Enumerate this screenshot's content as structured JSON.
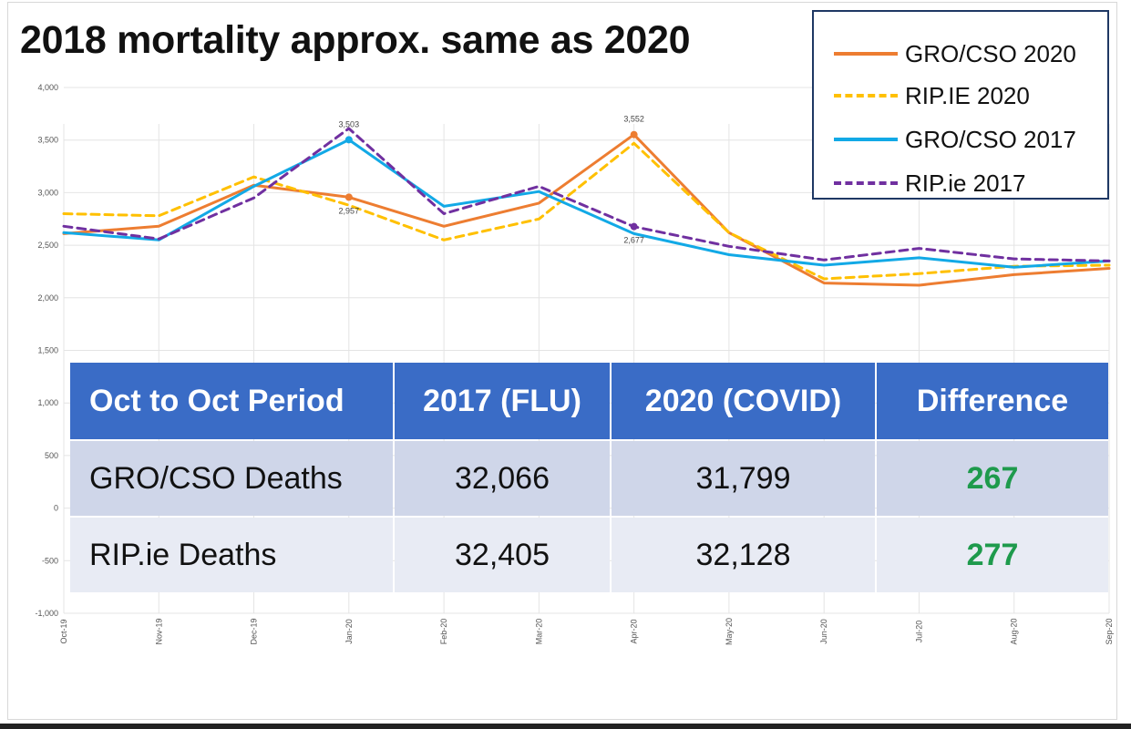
{
  "title": "2018 mortality approx. same as 2020",
  "legend": [
    {
      "label": "GRO/CSO 2020",
      "color": "#ed7d31",
      "dash": false
    },
    {
      "label": "RIP.IE 2020",
      "color": "#ffc000",
      "dash": true
    },
    {
      "label": "GRO/CSO 2017",
      "color": "#12a9e6",
      "dash": false
    },
    {
      "label": "RIP.ie 2017",
      "color": "#7030a0",
      "dash": true
    }
  ],
  "chart_data": {
    "type": "line",
    "title": "2018 mortality approx. same as 2020",
    "xlabel": "",
    "ylabel": "",
    "categories": [
      "Oct-19",
      "Nov-19",
      "Dec-19",
      "Jan-20",
      "Feb-20",
      "Mar-20",
      "Apr-20",
      "May-20",
      "Jun-20",
      "Jul-20",
      "Aug-20",
      "Sep-20"
    ],
    "ylim": [
      -1000,
      4000
    ],
    "yticks": [
      "4,000",
      "3,500",
      "3,000",
      "2,500",
      "2,000",
      "1,500",
      "1,000",
      "500",
      "0",
      "-500",
      "-1,000"
    ],
    "ytick_values": [
      4000,
      3500,
      3000,
      2500,
      2000,
      1500,
      1000,
      500,
      0,
      -500,
      -1000
    ],
    "grid": true,
    "legend_position": "top-right",
    "series": [
      {
        "name": "GRO/CSO 2020",
        "color": "#ed7d31",
        "dash": false,
        "markers": true,
        "values": [
          2610,
          2680,
          3070,
          2957,
          2680,
          2900,
          3552,
          2620,
          2140,
          2120,
          2220,
          2280
        ]
      },
      {
        "name": "RIP.IE 2020",
        "color": "#ffc000",
        "dash": true,
        "markers": false,
        "values": [
          2800,
          2780,
          3150,
          2880,
          2550,
          2750,
          3470,
          2620,
          2180,
          2230,
          2300,
          2310
        ]
      },
      {
        "name": "GRO/CSO 2017",
        "color": "#12a9e6",
        "dash": false,
        "markers": true,
        "values": [
          2620,
          2550,
          3060,
          3503,
          2870,
          3010,
          2610,
          2410,
          2310,
          2380,
          2290,
          2350
        ]
      },
      {
        "name": "RIP.ie 2017",
        "color": "#7030a0",
        "dash": true,
        "markers": false,
        "values": [
          2680,
          2560,
          2950,
          3610,
          2800,
          3060,
          2677,
          2490,
          2360,
          2470,
          2370,
          2350
        ]
      }
    ],
    "data_labels": [
      {
        "text": "3,503",
        "category": "Jan-20",
        "value": 3503,
        "position": "above"
      },
      {
        "text": "2,957",
        "category": "Jan-20",
        "value": 2957,
        "position": "below"
      },
      {
        "text": "3,552",
        "category": "Apr-20",
        "value": 3552,
        "position": "above"
      },
      {
        "text": "2,677",
        "category": "Apr-20",
        "value": 2677,
        "position": "below"
      }
    ]
  },
  "table": {
    "headers": [
      "Oct to Oct Period",
      "2017 (FLU)",
      "2020 (COVID)",
      "Difference"
    ],
    "rows": [
      {
        "label": "GRO/CSO Deaths",
        "v2017": "32,066",
        "v2020": "31,799",
        "diff": "267"
      },
      {
        "label": "RIP.ie Deaths",
        "v2017": "32,405",
        "v2020": "32,128",
        "diff": "277"
      }
    ]
  }
}
